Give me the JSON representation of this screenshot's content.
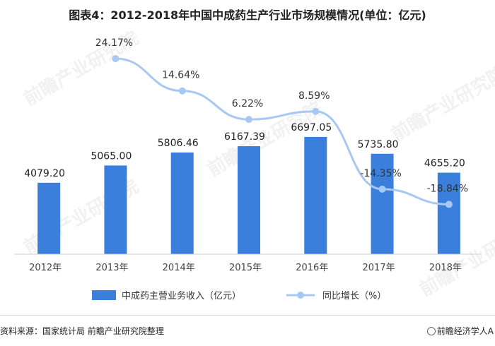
{
  "title": "图表4：2012-2018年中国中成药生产行业市场规模情况(单位：亿元)",
  "source": "资料来源：国家统计局 前瞻产业研究院整理",
  "brand": "前瞻经济学人A",
  "watermark": "前瞻产业研究院",
  "colors": {
    "bar": "#3a7fdc",
    "line": "#a8c8f4",
    "marker": "#a8c8f4"
  },
  "chart_data": {
    "type": "bar",
    "categories": [
      "2012年",
      "2013年",
      "2014年",
      "2015年",
      "2016年",
      "2017年",
      "2018年"
    ],
    "series": [
      {
        "name": "中成药主营业务收入（亿元）",
        "type": "bar",
        "values": [
          4079.2,
          5065.0,
          5806.46,
          6167.39,
          6697.05,
          5735.8,
          4655.2
        ],
        "labels": [
          "4079.20",
          "5065.00",
          "5806.46",
          "6167.39",
          "6697.05",
          "5735.80",
          "4655.20"
        ]
      },
      {
        "name": "同比增长（%）",
        "type": "line",
        "values": [
          null,
          24.17,
          14.64,
          6.22,
          8.59,
          -14.35,
          -18.84
        ],
        "labels": [
          "",
          "24.17%",
          "14.64%",
          "6.22%",
          "8.59%",
          "-14.35%",
          "-18.84%"
        ]
      }
    ],
    "legend": {
      "bar": "中成药主营业务收入（亿元）",
      "line": "同比增长（%）",
      "position": "bottom"
    },
    "grid": false
  }
}
